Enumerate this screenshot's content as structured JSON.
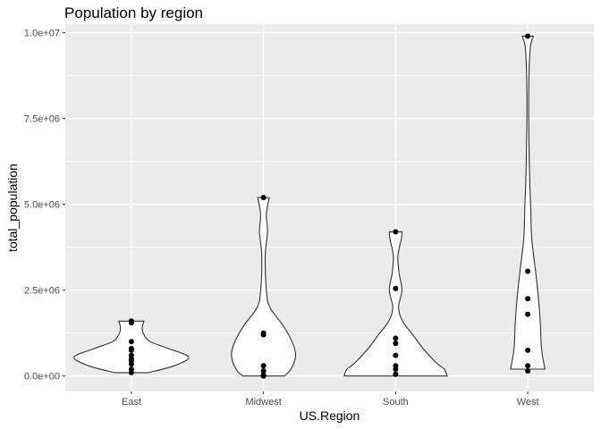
{
  "chart_data": {
    "type": "violin",
    "title": "Population by region",
    "xlabel": "US.Region",
    "ylabel": "total_population",
    "categories": [
      "East",
      "Midwest",
      "South",
      "West"
    ],
    "ylim": [
      -450000,
      10250000
    ],
    "y_ticks": [
      0,
      2500000,
      5000000,
      7500000,
      10000000
    ],
    "y_tick_labels": [
      "0.0e+00",
      "2.5e+06",
      "5.0e+06",
      "7.5e+06",
      "1.0e+07"
    ],
    "grid": true,
    "legend": "none",
    "colors": {
      "panel": "#EBEBEB",
      "grid": "#FFFFFF",
      "violin_fill": "#FFFFFF",
      "violin_stroke": "#333333",
      "point": "#000000"
    },
    "series": [
      {
        "category": "East",
        "points": [
          1600000,
          1550000,
          1000000,
          800000,
          750000,
          600000,
          500000,
          450000,
          350000,
          200000,
          100000
        ],
        "violin": [
          [
            100000,
            0.3
          ],
          [
            300000,
            0.75
          ],
          [
            550000,
            1.0
          ],
          [
            800000,
            0.65
          ],
          [
            1000000,
            0.33
          ],
          [
            1200000,
            0.22
          ],
          [
            1400000,
            0.19
          ],
          [
            1600000,
            0.22
          ]
        ]
      },
      {
        "category": "Midwest",
        "points": [
          5200000,
          1250000,
          1200000,
          300000,
          150000,
          30000,
          0
        ],
        "violin": [
          [
            0,
            0.36
          ],
          [
            200000,
            0.48
          ],
          [
            600000,
            0.56
          ],
          [
            1000000,
            0.5
          ],
          [
            1500000,
            0.33
          ],
          [
            2000000,
            0.11
          ],
          [
            2500000,
            0.05
          ],
          [
            3500000,
            0.03
          ],
          [
            4200000,
            0.07
          ],
          [
            4700000,
            0.05
          ],
          [
            5200000,
            0.1
          ]
        ]
      },
      {
        "category": "South",
        "points": [
          4200000,
          2550000,
          1100000,
          950000,
          600000,
          300000,
          200000,
          50000
        ],
        "violin": [
          [
            0,
            0.9
          ],
          [
            200000,
            0.85
          ],
          [
            400000,
            0.7
          ],
          [
            800000,
            0.48
          ],
          [
            1200000,
            0.3
          ],
          [
            1600000,
            0.12
          ],
          [
            2000000,
            0.05
          ],
          [
            2500000,
            0.11
          ],
          [
            3000000,
            0.06
          ],
          [
            3500000,
            0.04
          ],
          [
            4000000,
            0.1
          ],
          [
            4200000,
            0.11
          ]
        ]
      },
      {
        "category": "West",
        "points": [
          9900000,
          3050000,
          2250000,
          1800000,
          750000,
          300000,
          150000
        ],
        "violin": [
          [
            200000,
            0.3
          ],
          [
            800000,
            0.24
          ],
          [
            1500000,
            0.22
          ],
          [
            2200000,
            0.19
          ],
          [
            3000000,
            0.14
          ],
          [
            4000000,
            0.07
          ],
          [
            5000000,
            0.05
          ],
          [
            6000000,
            0.03
          ],
          [
            8000000,
            0.015
          ],
          [
            9500000,
            0.04
          ],
          [
            9900000,
            0.1
          ]
        ]
      }
    ]
  }
}
